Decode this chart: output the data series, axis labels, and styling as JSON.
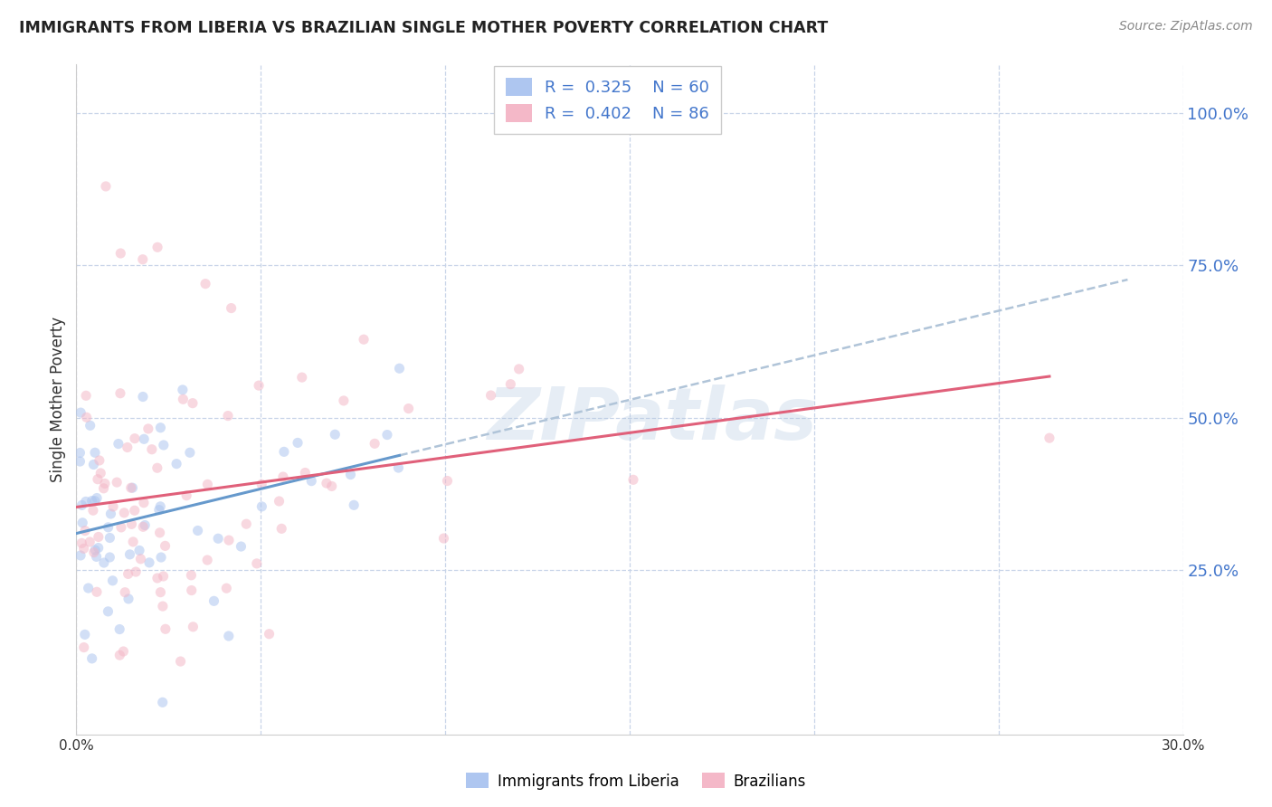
{
  "title": "IMMIGRANTS FROM LIBERIA VS BRAZILIAN SINGLE MOTHER POVERTY CORRELATION CHART",
  "source": "Source: ZipAtlas.com",
  "ylabel": "Single Mother Poverty",
  "yticks_labels": [
    "100.0%",
    "75.0%",
    "50.0%",
    "25.0%"
  ],
  "ytick_vals": [
    1.0,
    0.75,
    0.5,
    0.25
  ],
  "xlim": [
    0.0,
    0.3
  ],
  "ylim": [
    -0.02,
    1.08
  ],
  "watermark": "ZIPatlas",
  "legend_liberia": {
    "R": 0.325,
    "N": 60,
    "fill": "#aec6f0",
    "edge": "#7aaad0"
  },
  "legend_brazil": {
    "R": 0.402,
    "N": 86,
    "fill": "#f4b8c8",
    "edge": "#e07898"
  },
  "line_liberia": "#6699cc",
  "line_brazil": "#e0607a",
  "line_dash": "#b0c4d8",
  "bg_color": "#ffffff",
  "grid_color": "#c8d4e8",
  "scatter_alpha": 0.55,
  "scatter_size": 65,
  "tick_color": "#4477cc"
}
